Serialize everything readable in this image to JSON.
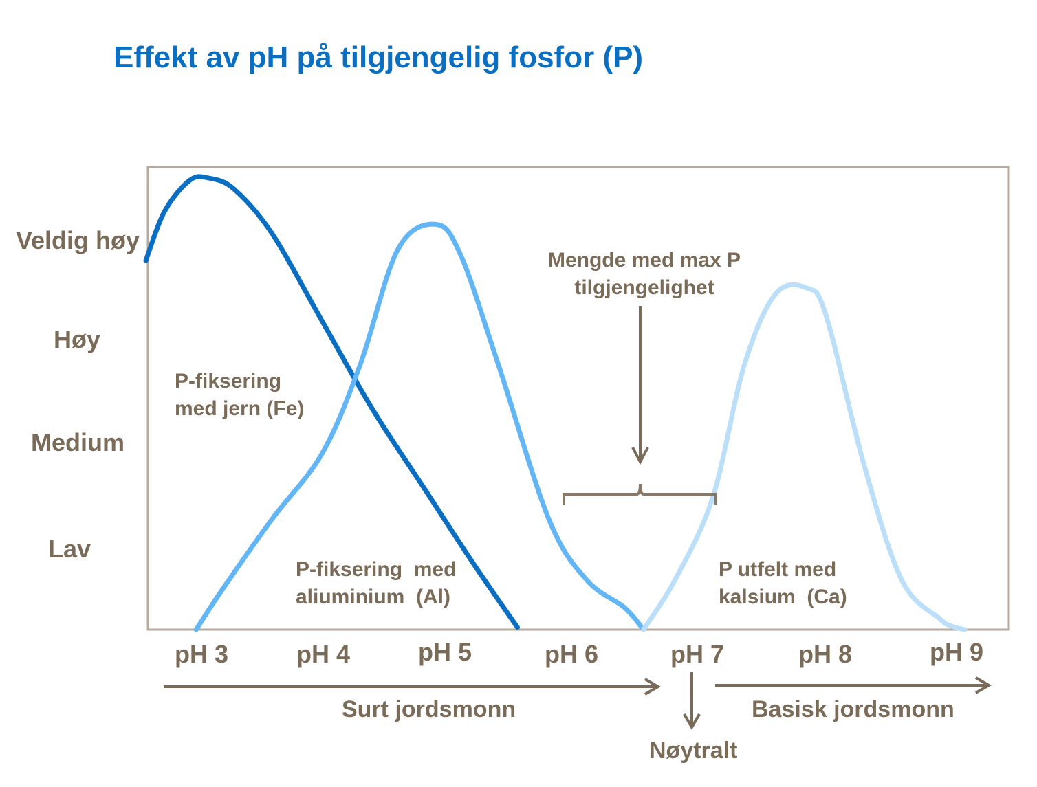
{
  "chart_data": {
    "type": "line",
    "title": "Effekt av pH på tilgjengelig fosfor (P)",
    "y_levels": [
      "Veldig høy",
      "Høy",
      "Medium",
      "Lav"
    ],
    "x_ticks": [
      "pH 3",
      "pH 4",
      "pH 5",
      "pH 6",
      "pH 7",
      "pH 8",
      "pH 9"
    ],
    "xlim": [
      2.6,
      9.45
    ],
    "ylim": [
      0,
      4.2
    ],
    "grid": false,
    "series": [
      {
        "color": "#0a6fc2",
        "x": [
          2.6,
          2.75,
          2.95,
          3.1,
          3.3,
          3.6,
          4.0,
          4.4,
          4.8,
          5.2,
          5.55
        ],
        "y": [
          3.35,
          3.8,
          4.08,
          4.1,
          4.0,
          3.6,
          2.8,
          2.0,
          1.3,
          0.6,
          0.02
        ]
      },
      {
        "color": "#63b6f5",
        "x": [
          3.0,
          3.2,
          3.6,
          4.0,
          4.3,
          4.6,
          4.9,
          5.1,
          5.4,
          5.8,
          6.1,
          6.4,
          6.55
        ],
        "y": [
          0.0,
          0.35,
          1.0,
          1.6,
          2.4,
          3.45,
          3.68,
          3.4,
          2.4,
          1.0,
          0.45,
          0.2,
          0.0
        ]
      },
      {
        "color": "#bcdff9",
        "x": [
          6.55,
          6.8,
          7.1,
          7.35,
          7.6,
          7.85,
          8.0,
          8.3,
          8.6,
          8.9,
          9.0,
          9.1
        ],
        "y": [
          0.0,
          0.45,
          1.2,
          2.4,
          3.05,
          3.1,
          2.85,
          1.5,
          0.45,
          0.1,
          0.03,
          0.0
        ]
      }
    ],
    "annotations": {
      "fe_line1": "P-fiksering",
      "fe_line2": "med jern (Fe)",
      "al_line1": "P-fiksering  med",
      "al_line2": "aliuminium  (Al)",
      "ca_line1": "P utfelt med",
      "ca_line2": "kalsium  (Ca)",
      "max_line1": "Mengde med max P",
      "max_line2": "tilgjengelighet"
    },
    "soil": {
      "acid": "Surt jordsmonn",
      "neutral": "Nøytralt",
      "basic": "Basisk jordsmonn"
    }
  },
  "colors": {
    "frame": "#b7aa9d",
    "text": "#7a6a58",
    "title": "#0a6fc2"
  }
}
